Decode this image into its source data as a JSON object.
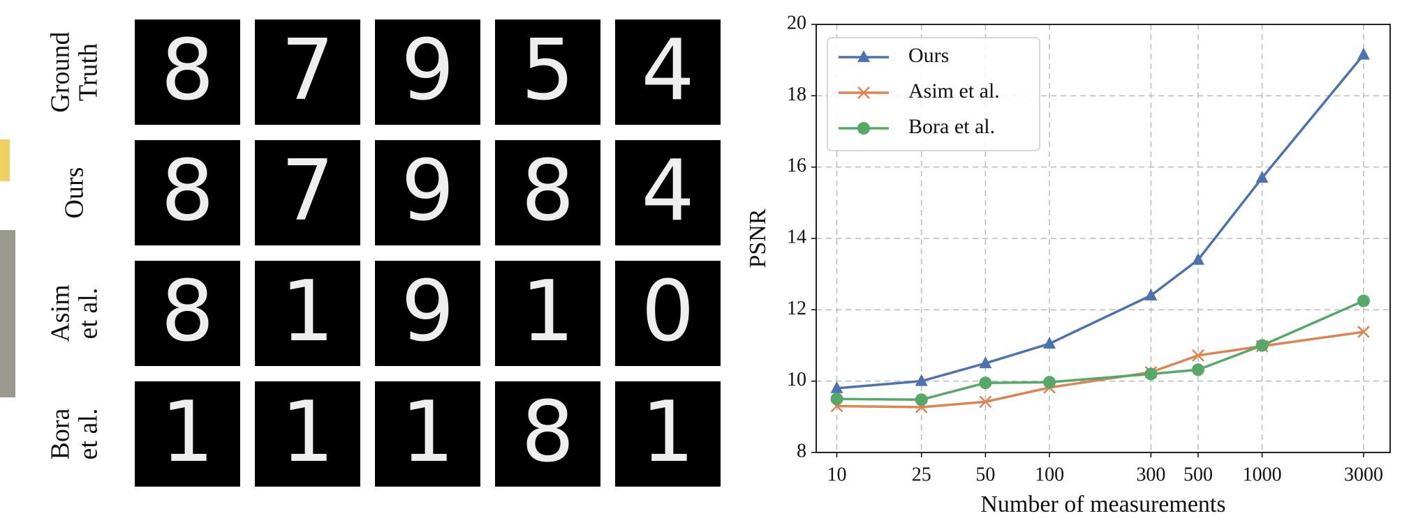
{
  "image_grid": {
    "row_labels": [
      [
        "Ground",
        "Truth"
      ],
      [
        "Ours"
      ],
      [
        "Asim",
        "et al."
      ],
      [
        "Bora",
        "et al."
      ]
    ],
    "digits": [
      [
        "8",
        "7",
        "9",
        "5",
        "4"
      ],
      [
        "8",
        "7",
        "9",
        "8",
        "4"
      ],
      [
        "8",
        "1",
        "9",
        "1",
        "0"
      ],
      [
        "1",
        "1",
        "1",
        "8",
        "1"
      ]
    ]
  },
  "chart_data": {
    "type": "line",
    "x_label": "Number of measurements",
    "y_label": "PSNR",
    "x": [
      10,
      25,
      50,
      100,
      300,
      500,
      1000,
      3000
    ],
    "xlim": [
      8,
      4000
    ],
    "xticks": [
      10,
      25,
      50,
      100,
      300,
      500,
      1000,
      3000
    ],
    "x_scale": "log",
    "ylim": [
      8,
      20
    ],
    "yticks": [
      8,
      10,
      12,
      14,
      16,
      18,
      20
    ],
    "grid": true,
    "legend": "upper-left",
    "series": [
      {
        "name": "Ours",
        "color": "#4c72b0",
        "marker": "triangle",
        "values": [
          9.8,
          10.0,
          10.5,
          11.05,
          12.4,
          13.4,
          15.7,
          19.15
        ]
      },
      {
        "name": "Asim et al.",
        "color": "#dd8452",
        "marker": "x",
        "values": [
          9.3,
          9.27,
          9.42,
          9.82,
          10.25,
          10.72,
          10.98,
          11.38
        ]
      },
      {
        "name": "Bora et al.",
        "color": "#55a868",
        "marker": "circle",
        "values": [
          9.5,
          9.48,
          9.95,
          9.97,
          10.2,
          10.32,
          11.0,
          12.25
        ]
      }
    ]
  }
}
